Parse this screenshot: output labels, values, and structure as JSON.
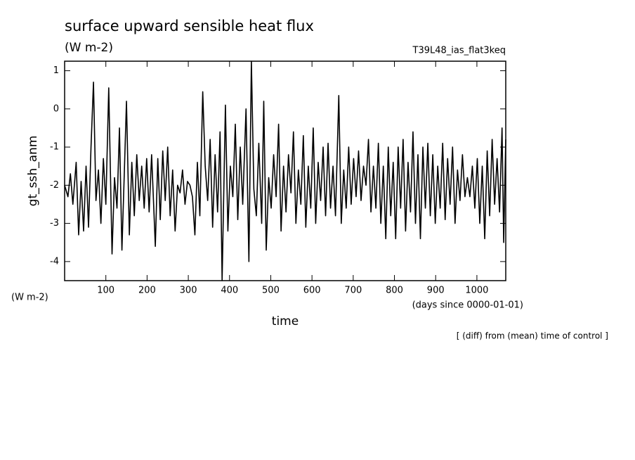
{
  "chart_data": {
    "type": "line",
    "title": "surface upward sensible heat flux",
    "title_units": "(W m-2)",
    "run_name": "T39L48_ias_flat3keq",
    "y_label": "gt_ssh_anm",
    "y_units": "(W m-2)",
    "x_units": "(days since 0000-01-01)",
    "x_label": "time",
    "note": "[ (diff) from (mean) time of control ]",
    "xlim": [
      0,
      1070
    ],
    "xticks": [
      100,
      200,
      300,
      400,
      500,
      600,
      700,
      800,
      900,
      1000
    ],
    "ylim": [
      -4.5,
      1.25
    ],
    "yticks": [
      -4,
      -3,
      -2,
      -1,
      0,
      1
    ],
    "color": "#000000",
    "x": [
      0,
      8,
      14,
      20,
      28,
      34,
      40,
      46,
      52,
      58,
      64,
      70,
      76,
      82,
      88,
      94,
      100,
      107,
      115,
      121,
      127,
      133,
      139,
      145,
      150,
      157,
      163,
      169,
      175,
      181,
      187,
      193,
      199,
      205,
      211,
      220,
      226,
      232,
      238,
      244,
      250,
      256,
      262,
      268,
      274,
      280,
      286,
      292,
      298,
      304,
      310,
      316,
      322,
      328,
      335,
      341,
      347,
      353,
      359,
      365,
      371,
      377,
      382,
      390,
      396,
      402,
      408,
      414,
      420,
      426,
      432,
      440,
      447,
      453,
      459,
      465,
      471,
      478,
      483,
      489,
      495,
      501,
      507,
      513,
      519,
      525,
      531,
      537,
      543,
      549,
      555,
      561,
      567,
      573,
      579,
      585,
      591,
      597,
      603,
      609,
      615,
      621,
      627,
      633,
      639,
      645,
      651,
      657,
      665,
      671,
      677,
      683,
      689,
      695,
      701,
      707,
      713,
      719,
      725,
      731,
      737,
      743,
      749,
      755,
      761,
      767,
      773,
      779,
      785,
      791,
      797,
      803,
      809,
      815,
      821,
      827,
      833,
      839,
      845,
      851,
      857,
      863,
      869,
      875,
      881,
      887,
      893,
      899,
      905,
      911,
      917,
      923,
      929,
      935,
      941,
      947,
      953,
      959,
      965,
      971,
      977,
      983,
      989,
      995,
      1001,
      1007,
      1013,
      1019,
      1025,
      1031,
      1037,
      1043,
      1049,
      1055,
      1061,
      1065,
      1070
    ],
    "values": [
      -2.0,
      -2.3,
      -1.7,
      -2.5,
      -1.4,
      -3.3,
      -1.9,
      -3.2,
      -1.5,
      -3.1,
      -1.0,
      0.7,
      -2.4,
      -1.6,
      -3.0,
      -1.3,
      -2.5,
      0.55,
      -3.8,
      -1.8,
      -2.6,
      -0.5,
      -3.7,
      -1.6,
      0.2,
      -3.3,
      -1.4,
      -2.8,
      -1.2,
      -2.4,
      -1.5,
      -2.6,
      -1.3,
      -2.7,
      -1.2,
      -3.6,
      -1.3,
      -2.9,
      -1.1,
      -2.4,
      -1.0,
      -2.8,
      -1.6,
      -3.2,
      -2.0,
      -2.2,
      -1.6,
      -2.5,
      -1.9,
      -2.0,
      -2.3,
      -3.3,
      -1.4,
      -2.8,
      0.45,
      -1.5,
      -2.4,
      -0.8,
      -3.1,
      -1.2,
      -2.7,
      -0.6,
      -4.5,
      0.1,
      -3.2,
      -1.5,
      -2.3,
      -0.4,
      -2.9,
      -1.0,
      -2.5,
      0.0,
      -4.0,
      1.25,
      -2.1,
      -2.8,
      -0.9,
      -3.0,
      0.2,
      -3.7,
      -1.8,
      -2.6,
      -1.2,
      -2.3,
      -0.4,
      -3.2,
      -1.5,
      -2.7,
      -1.2,
      -2.2,
      -0.6,
      -3.0,
      -1.6,
      -2.5,
      -0.7,
      -3.1,
      -1.5,
      -2.6,
      -0.5,
      -3.0,
      -1.4,
      -2.4,
      -1.0,
      -2.8,
      -0.9,
      -2.6,
      -1.5,
      -2.8,
      0.35,
      -3.0,
      -1.6,
      -2.6,
      -1.0,
      -2.5,
      -1.3,
      -2.3,
      -1.1,
      -2.4,
      -1.5,
      -2.0,
      -0.8,
      -2.7,
      -1.5,
      -2.6,
      -0.9,
      -3.0,
      -1.5,
      -3.4,
      -1.0,
      -2.8,
      -1.4,
      -3.4,
      -1.0,
      -2.6,
      -0.8,
      -3.2,
      -1.4,
      -2.7,
      -0.6,
      -3.0,
      -1.2,
      -3.4,
      -1.0,
      -2.6,
      -0.9,
      -2.8,
      -1.2,
      -3.0,
      -1.5,
      -2.6,
      -0.9,
      -2.9,
      -1.3,
      -2.5,
      -1.0,
      -3.0,
      -1.6,
      -2.4,
      -1.2,
      -2.3,
      -1.8,
      -2.3,
      -1.5,
      -2.6,
      -1.3,
      -3.0,
      -1.5,
      -3.4,
      -1.1,
      -2.8,
      -0.8,
      -2.5,
      -1.3,
      -2.7,
      -0.5,
      -3.5,
      -0.8
    ]
  }
}
